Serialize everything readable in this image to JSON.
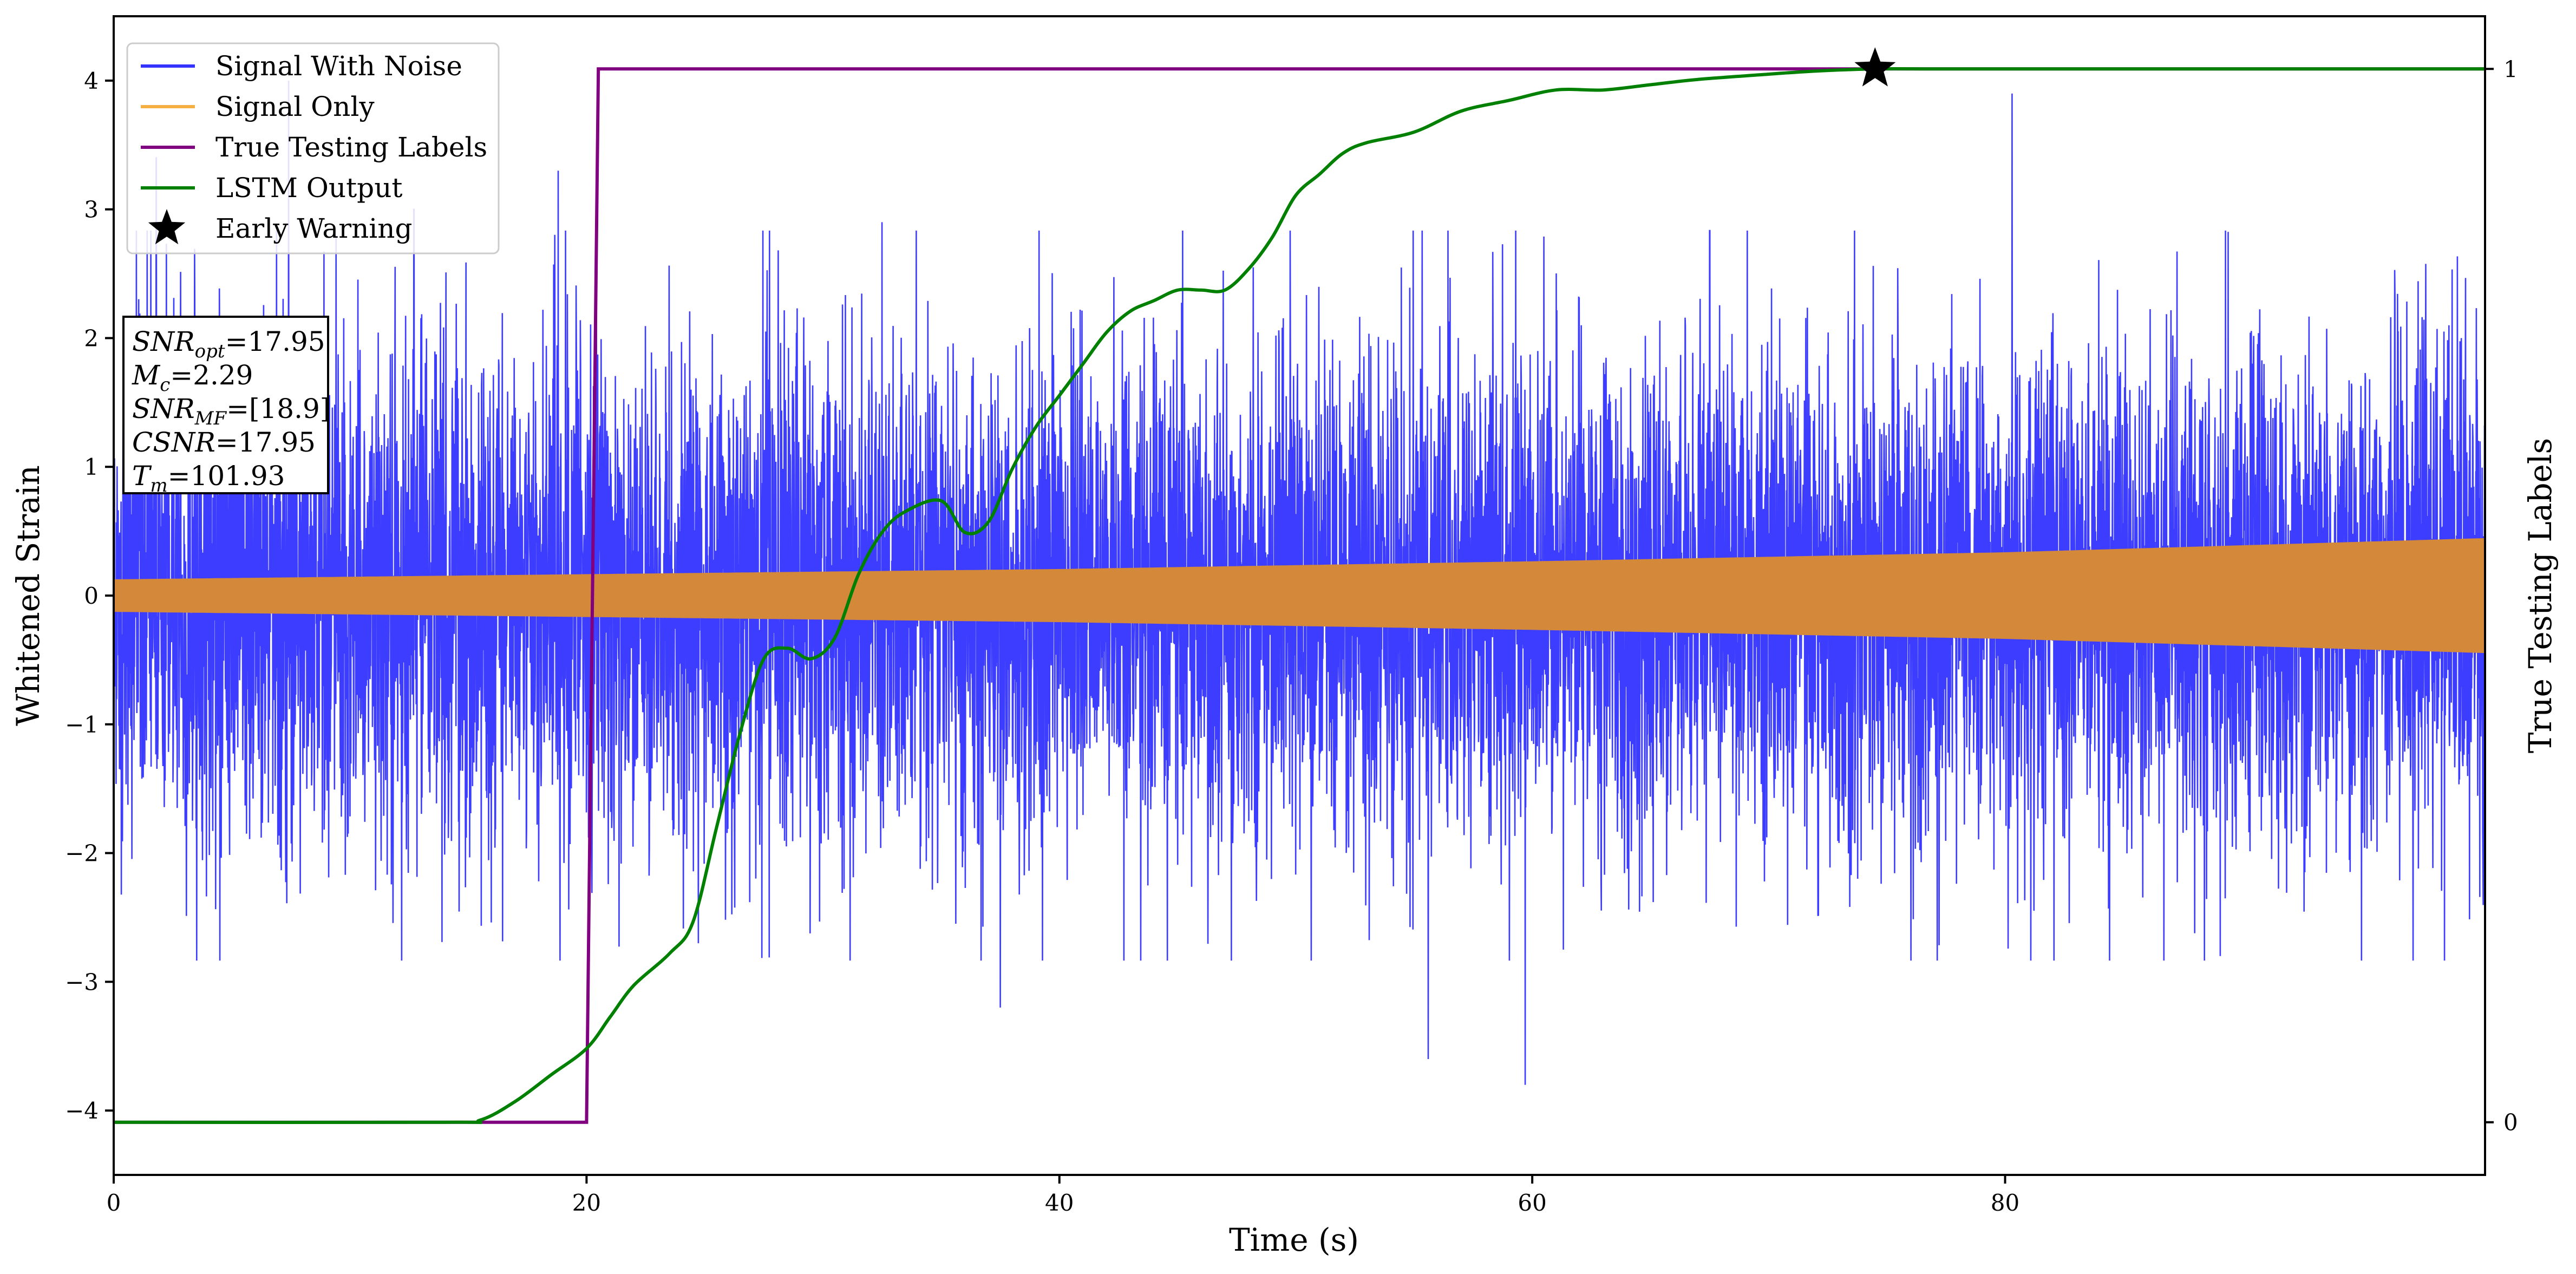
{
  "chart_data": {
    "type": "line",
    "xlabel": "Time (s)",
    "ylabel": "Whitened Strain",
    "ylabel_right": "True Testing Labels",
    "xlim": [
      0,
      100.3
    ],
    "ylim": [
      -4.5,
      4.5
    ],
    "ylim_right": [
      -0.05,
      1.05
    ],
    "x_ticks": [
      0,
      20,
      40,
      60,
      80
    ],
    "x_tick_labels": [
      "0",
      "20",
      "40",
      "60",
      "80"
    ],
    "y_ticks": [
      -4,
      -3,
      -2,
      -1,
      0,
      1,
      2,
      3,
      4
    ],
    "y_tick_labels": [
      "−4",
      "−3",
      "−2",
      "−1",
      "0",
      "1",
      "2",
      "3",
      "4"
    ],
    "y_right_ticks": [
      0,
      1
    ],
    "y_right_tick_labels": [
      "0",
      "1"
    ],
    "grid": false,
    "legend_position": "top-left",
    "legend": [
      {
        "label": "Signal With Noise",
        "color": "#3333ff",
        "marker": "line"
      },
      {
        "label": "Signal Only",
        "color": "#f5b041",
        "marker": "line"
      },
      {
        "label": "True Testing Labels",
        "color": "#800080",
        "marker": "line"
      },
      {
        "label": "LSTM Output",
        "color": "#008000",
        "marker": "line"
      },
      {
        "label": "Early Warning",
        "color": "#000000",
        "marker": "star"
      }
    ],
    "series": [
      {
        "name": "Signal With Noise",
        "axis": "left",
        "color": "#3333ff",
        "description_points": {
          "typical_envelope": 2.1,
          "peak_spikes_x": [
            1.8,
            7.4,
            12.7,
            18.8,
            32.5,
            37.5,
            55.6,
            59.7,
            80.3,
            89.1,
            99.3
          ],
          "peak_spikes_y": [
            3.4,
            4.0,
            3.0,
            3.3,
            2.9,
            -3.2,
            -3.6,
            -3.8,
            3.9,
            -2.8,
            2.0
          ]
        }
      },
      {
        "name": "Signal Only",
        "axis": "left",
        "color": "#d4883a",
        "envelope_x": [
          0,
          20,
          40,
          60,
          80,
          100.3
        ],
        "envelope_y": [
          0.12,
          0.16,
          0.2,
          0.26,
          0.33,
          0.44
        ]
      },
      {
        "name": "True Testing Labels",
        "axis": "right",
        "color": "#800080",
        "x": [
          0,
          20.0,
          20.5,
          100.3
        ],
        "y": [
          0,
          0,
          1,
          1
        ]
      },
      {
        "name": "LSTM Output",
        "axis": "right",
        "color": "#008000",
        "x": [
          0,
          14,
          15.5,
          17,
          18.5,
          20,
          21,
          22,
          23.5,
          24.5,
          25.5,
          26.5,
          27.5,
          28.5,
          29.5,
          30.5,
          31.5,
          32.5,
          33.5,
          35,
          36,
          37,
          38,
          39,
          40,
          41,
          42,
          43,
          44,
          45,
          46,
          47,
          48,
          49,
          50,
          51,
          52,
          53,
          55,
          57,
          59,
          61,
          63,
          65,
          67,
          70,
          72,
          74.5,
          77,
          80,
          100.3
        ],
        "y": [
          0,
          0,
          0.002,
          0.02,
          0.045,
          0.07,
          0.1,
          0.13,
          0.16,
          0.19,
          0.28,
          0.37,
          0.44,
          0.45,
          0.44,
          0.46,
          0.52,
          0.56,
          0.58,
          0.59,
          0.56,
          0.57,
          0.62,
          0.66,
          0.69,
          0.72,
          0.75,
          0.77,
          0.78,
          0.79,
          0.79,
          0.79,
          0.81,
          0.84,
          0.88,
          0.9,
          0.92,
          0.93,
          0.94,
          0.96,
          0.97,
          0.98,
          0.98,
          0.985,
          0.99,
          0.995,
          0.998,
          1.0,
          1.0,
          1.0,
          1.0
        ]
      }
    ],
    "early_warning": {
      "x": 74.5,
      "y": 1.0,
      "marker": "star"
    },
    "info_box": [
      {
        "base": "SNR",
        "sub": "opt",
        "value": "=17.95"
      },
      {
        "base": "M",
        "sub": "c",
        "value": "=2.29"
      },
      {
        "base": "SNR",
        "sub": "MF",
        "value": "=[18.9]"
      },
      {
        "base": "CSNR",
        "sub": "",
        "value": "=17.95"
      },
      {
        "base": "T",
        "sub": "m",
        "value": "=101.93"
      }
    ]
  }
}
